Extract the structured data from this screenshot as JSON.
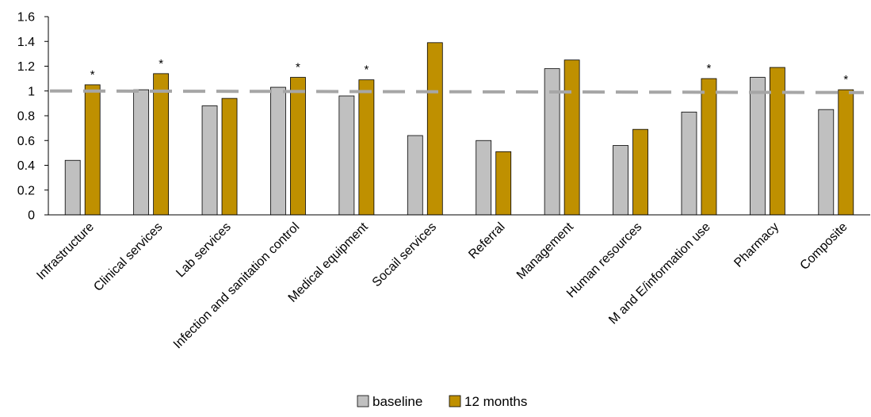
{
  "chart_data": {
    "type": "bar",
    "title": "",
    "xlabel": "",
    "ylabel": "",
    "ylim": [
      0,
      1.6
    ],
    "yticks": [
      "0",
      "0.2",
      "0.4",
      "0.6",
      "0.8",
      "1",
      "1.2",
      "1.4",
      "1.6"
    ],
    "categories": [
      "Infrastructure",
      "Clinical services",
      "Lab services",
      "Infection and sanitation control",
      "Medical equipment",
      "Socail services",
      "Referral",
      "Management",
      "Human resources",
      "M and E/information use",
      "Pharmacy",
      "Composite"
    ],
    "series": [
      {
        "name": "baseline",
        "color": "#c0c0c0",
        "values": [
          0.44,
          1.01,
          0.88,
          1.03,
          0.96,
          0.64,
          0.6,
          1.18,
          0.56,
          0.83,
          1.11,
          0.85
        ]
      },
      {
        "name": "12 months",
        "color": "#bf9000",
        "values": [
          1.05,
          1.14,
          0.94,
          1.11,
          1.09,
          1.39,
          0.51,
          1.25,
          0.69,
          1.1,
          1.19,
          1.01
        ]
      }
    ],
    "significance_marker": "*",
    "significant": [
      true,
      true,
      false,
      true,
      true,
      false,
      false,
      false,
      false,
      true,
      false,
      true
    ],
    "reference_line": {
      "value": 1,
      "style": "dashed",
      "color": "#a6a6a6"
    },
    "legend": {
      "position": "bottom",
      "entries": [
        "baseline",
        "12 months"
      ]
    },
    "grid": false
  }
}
